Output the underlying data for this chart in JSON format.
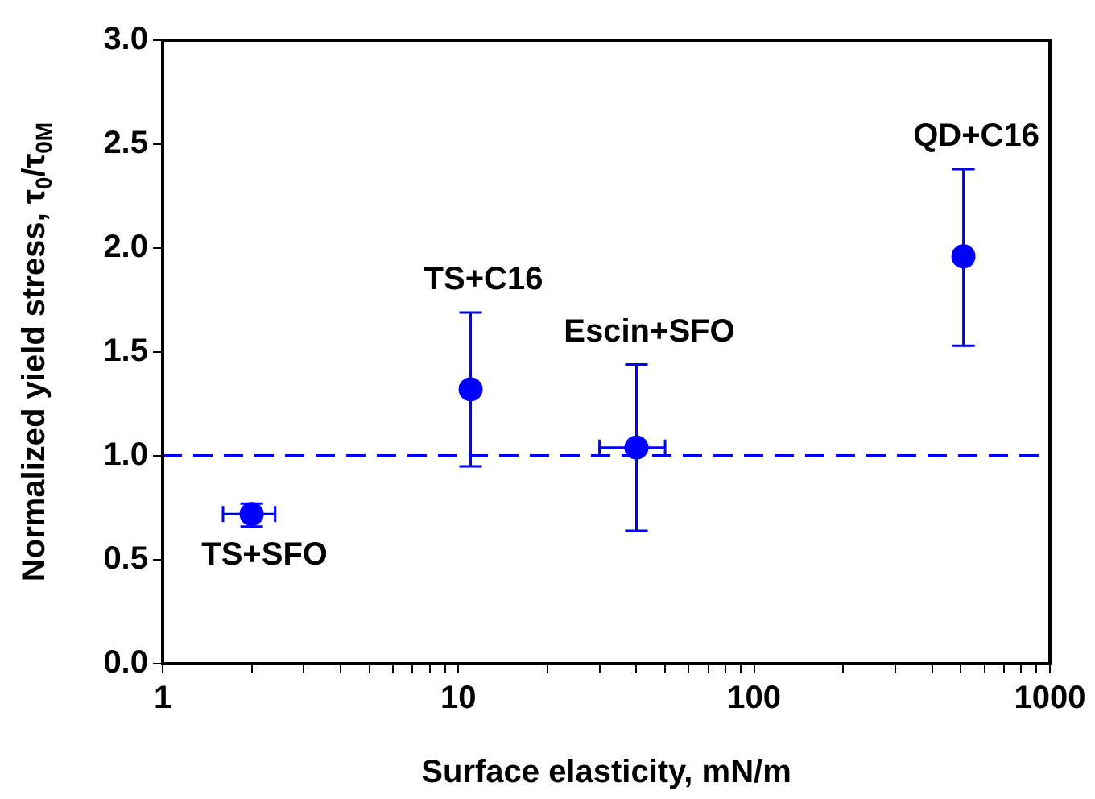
{
  "chart_data": {
    "type": "scatter",
    "xlabel": "Surface elasticity, mN/m",
    "ylabel": "Normalized yield stress, τ$_{0}$/τ$_{0M}$",
    "log": "x",
    "xlim": [
      1,
      1000
    ],
    "xticks": [
      1,
      {
        "value": 2,
        "label": null
      },
      {
        "value": 3,
        "label": null
      },
      {
        "value": 4,
        "label": null
      },
      {
        "value": 5,
        "label": null
      },
      {
        "value": 6,
        "label": null
      },
      {
        "value": 7,
        "label": null
      },
      {
        "value": 8,
        "label": null
      },
      {
        "value": 9,
        "label": null
      },
      10,
      {
        "value": 20,
        "label": null
      },
      {
        "value": 30,
        "label": null
      },
      {
        "value": 40,
        "label": null
      },
      {
        "value": 50,
        "label": null
      },
      {
        "value": 60,
        "label": null
      },
      {
        "value": 70,
        "label": null
      },
      {
        "value": 80,
        "label": null
      },
      {
        "value": 90,
        "label": null
      },
      100,
      {
        "value": 200,
        "label": null
      },
      {
        "value": 300,
        "label": null
      },
      {
        "value": 400,
        "label": null
      },
      {
        "value": 500,
        "label": null
      },
      {
        "value": 600,
        "label": null
      },
      {
        "value": 700,
        "label": null
      },
      {
        "value": 800,
        "label": null
      },
      {
        "value": 900,
        "label": null
      },
      1000
    ],
    "ylim": [
      0,
      3
    ],
    "yticks": [
      {
        "value": 0,
        "label": "0.0"
      },
      {
        "value": 0.5,
        "label": "0.5"
      },
      {
        "value": 1,
        "label": "1.0"
      },
      {
        "value": 1.5,
        "label": "1.5"
      },
      {
        "value": 2,
        "label": "2.0"
      },
      {
        "value": 2.5,
        "label": "2.5"
      },
      {
        "value": 3,
        "label": "3.0"
      }
    ],
    "grid": false,
    "legend": false,
    "marker": "circle",
    "series": [
      {
        "color": "#0000ff",
        "x": [
          2,
          11,
          40,
          510
        ],
        "values": [
          0.72,
          1.32,
          1.04,
          1.96
        ],
        "errors": [
          [
            0.66,
            0.77
          ],
          [
            0.95,
            1.69
          ],
          [
            0.64,
            1.44
          ],
          [
            1.53,
            2.38
          ]
        ],
        "xerrors": [
          [
            1.6,
            2.4
          ],
          null,
          [
            30,
            50
          ],
          [
            480,
            545
          ]
        ]
      }
    ],
    "ref_lines": [
      {
        "axis": "y",
        "value": 1,
        "color": "#0000ff",
        "line_style": "dashed"
      }
    ],
    "annotations": [
      "TS+SFO",
      "TS+C16",
      "Escin+SFO",
      "QD+C16"
    ]
  }
}
